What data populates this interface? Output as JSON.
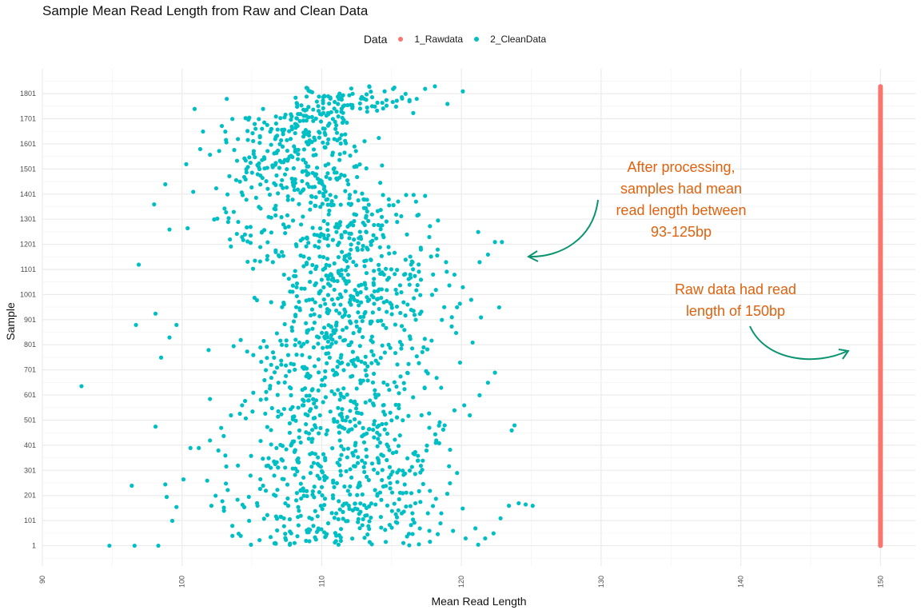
{
  "chart_data": {
    "type": "scatter",
    "title": "Sample Mean Read Length from Raw and Clean Data",
    "xlabel": "Mean Read Length",
    "ylabel": "Sample",
    "xlim": [
      90,
      152.5
    ],
    "ylim": [
      -80,
      1900
    ],
    "x_ticks": [
      "90",
      "100",
      "110",
      "120",
      "130",
      "140",
      "150"
    ],
    "y_ticks": [
      "1",
      "101",
      "201",
      "301",
      "401",
      "501",
      "601",
      "701",
      "801",
      "901",
      "1001",
      "1101",
      "1201",
      "1301",
      "1401",
      "1501",
      "1601",
      "1701",
      "1801"
    ],
    "legend": {
      "title": "Data",
      "placement": "top",
      "entries": [
        {
          "label": "1_Rawdata",
          "color": "#f8766d"
        },
        {
          "label": "2_CleanData",
          "color": "#00bfc4"
        }
      ]
    },
    "series": [
      {
        "name": "1_Rawdata",
        "color": "#f8766d",
        "description_points": "x = 150 for every sample 1-1830",
        "x_constant": 150,
        "y_range": [
          1,
          1830
        ]
      },
      {
        "name": "2_CleanData",
        "color": "#00bfc4",
        "points": [
          [
            92.8,
            636
          ],
          [
            94.8,
            1
          ],
          [
            96.6,
            1
          ],
          [
            98.3,
            1
          ],
          [
            96.4,
            240
          ],
          [
            96.7,
            880
          ],
          [
            96.9,
            1120
          ],
          [
            98.1,
            925
          ],
          [
            98.1,
            475
          ],
          [
            98.5,
            750
          ],
          [
            98.8,
            245
          ],
          [
            98.9,
            195
          ],
          [
            99.1,
            830
          ],
          [
            99.6,
            880
          ],
          [
            98.0,
            1360
          ],
          [
            98.8,
            1440
          ],
          [
            99.1,
            1260
          ],
          [
            99.3,
            100
          ],
          [
            99.6,
            155
          ],
          [
            100.1,
            265
          ],
          [
            100.3,
            1520
          ],
          [
            100.4,
            1265
          ],
          [
            100.6,
            390
          ],
          [
            100.8,
            1410
          ],
          [
            100.9,
            1740
          ],
          [
            101.3,
            1580
          ],
          [
            101.5,
            1650
          ],
          [
            101.9,
            780
          ],
          [
            102.3,
            1300
          ],
          [
            102.1,
            160
          ],
          [
            102.0,
            585
          ],
          [
            102.6,
            380
          ],
          [
            103.2,
            1780
          ],
          [
            103.6,
            1700
          ],
          [
            104.0,
            1620
          ],
          [
            104.6,
            1500
          ],
          [
            105.2,
            1680
          ],
          [
            105.8,
            1740
          ],
          [
            106.4,
            1660
          ],
          [
            107.0,
            1600
          ],
          [
            107.7,
            1550
          ],
          [
            108.3,
            1720
          ],
          [
            108.9,
            1640
          ],
          [
            109.6,
            1480
          ],
          [
            110.2,
            1790
          ],
          [
            110.8,
            1700
          ],
          [
            111.3,
            1560
          ],
          [
            111.9,
            1440
          ],
          [
            112.4,
            1410
          ],
          [
            113.0,
            1380
          ],
          [
            113.6,
            1320
          ],
          [
            114.3,
            1310
          ],
          [
            114.8,
            1380
          ],
          [
            115.4,
            1290
          ],
          [
            116.1,
            1240
          ],
          [
            113.4,
            1830
          ],
          [
            114.5,
            1810
          ],
          [
            115.2,
            1825
          ],
          [
            116.0,
            1800
          ],
          [
            116.8,
            1780
          ],
          [
            117.4,
            1820
          ],
          [
            118.1,
            1830
          ],
          [
            119.0,
            1760
          ],
          [
            120.1,
            1810
          ],
          [
            121.2,
            1250
          ],
          [
            122.4,
            1210
          ],
          [
            122.9,
            1210
          ],
          [
            122.7,
            950
          ],
          [
            121.4,
            910
          ],
          [
            120.8,
            810
          ],
          [
            119.9,
            730
          ],
          [
            118.6,
            900
          ],
          [
            117.9,
            1000
          ],
          [
            117.1,
            1060
          ],
          [
            116.4,
            940
          ],
          [
            115.7,
            1010
          ],
          [
            115.0,
            960
          ],
          [
            114.4,
            880
          ],
          [
            113.7,
            990
          ],
          [
            113.1,
            1040
          ],
          [
            112.6,
            930
          ],
          [
            112.0,
            970
          ],
          [
            111.5,
            860
          ],
          [
            110.9,
            1020
          ],
          [
            103.3,
            1290
          ],
          [
            104.5,
            1240
          ],
          [
            105.6,
            1190
          ],
          [
            106.5,
            1130
          ],
          [
            107.3,
            1080
          ],
          [
            108.2,
            1030
          ],
          [
            109.1,
            980
          ],
          [
            110.1,
            1100
          ],
          [
            111.2,
            1150
          ],
          [
            112.1,
            1200
          ],
          [
            104.2,
            820
          ],
          [
            105.1,
            760
          ],
          [
            106.0,
            700
          ],
          [
            106.9,
            650
          ],
          [
            107.8,
            600
          ],
          [
            108.7,
            560
          ],
          [
            109.5,
            510
          ],
          [
            110.4,
            460
          ],
          [
            111.3,
            420
          ],
          [
            112.2,
            370
          ],
          [
            113.1,
            330
          ],
          [
            114.0,
            290
          ],
          [
            114.9,
            250
          ],
          [
            115.8,
            210
          ],
          [
            116.7,
            170
          ],
          [
            117.6,
            130
          ],
          [
            118.5,
            90
          ],
          [
            119.4,
            60
          ],
          [
            120.3,
            30
          ],
          [
            121.2,
            5
          ],
          [
            103.1,
            360
          ],
          [
            104.0,
            320
          ],
          [
            104.9,
            280
          ],
          [
            105.8,
            240
          ],
          [
            106.7,
            200
          ],
          [
            107.6,
            160
          ],
          [
            108.5,
            120
          ],
          [
            109.4,
            80
          ],
          [
            110.3,
            40
          ],
          [
            111.2,
            5
          ],
          [
            101.2,
            390
          ],
          [
            102.0,
            420
          ],
          [
            102.8,
            470
          ],
          [
            103.5,
            520
          ],
          [
            104.3,
            560
          ],
          [
            105.1,
            610
          ],
          [
            105.9,
            660
          ],
          [
            106.8,
            710
          ],
          [
            107.6,
            760
          ],
          [
            108.4,
            810
          ],
          [
            121.0,
            70
          ],
          [
            121.7,
            30
          ],
          [
            122.3,
            50
          ],
          [
            122.8,
            110
          ],
          [
            123.4,
            160
          ],
          [
            124.1,
            170
          ],
          [
            124.6,
            165
          ],
          [
            125.1,
            160
          ],
          [
            123.6,
            460
          ],
          [
            123.8,
            480
          ],
          [
            120.2,
            560
          ],
          [
            120.6,
            520
          ],
          [
            121.3,
            600
          ],
          [
            121.9,
            650
          ],
          [
            122.4,
            690
          ],
          [
            119.5,
            540
          ],
          [
            118.8,
            480
          ],
          [
            118.2,
            420
          ],
          [
            117.5,
            380
          ],
          [
            116.9,
            340
          ],
          [
            116.3,
            300
          ],
          [
            115.6,
            440
          ],
          [
            115.0,
            500
          ],
          [
            114.4,
            560
          ],
          [
            113.8,
            620
          ],
          [
            113.2,
            680
          ],
          [
            112.6,
            740
          ],
          [
            112.0,
            800
          ],
          [
            111.4,
            760
          ],
          [
            110.8,
            700
          ],
          [
            110.2,
            640
          ],
          [
            109.6,
            580
          ],
          [
            109.0,
            520
          ],
          [
            108.4,
            460
          ],
          [
            107.8,
            400
          ],
          [
            107.2,
            340
          ],
          [
            106.6,
            280
          ],
          [
            106.0,
            220
          ],
          [
            105.4,
            160
          ],
          [
            104.8,
            100
          ],
          [
            104.2,
            40
          ],
          [
            103.6,
            80
          ],
          [
            103.0,
            140
          ],
          [
            102.4,
            200
          ],
          [
            101.8,
            260
          ],
          [
            106.2,
            1310
          ],
          [
            105.5,
            1350
          ],
          [
            104.9,
            1270
          ],
          [
            104.3,
            1230
          ],
          [
            103.7,
            1330
          ],
          [
            107.5,
            1500
          ],
          [
            108.1,
            1460
          ],
          [
            108.7,
            1420
          ],
          [
            109.3,
            1390
          ],
          [
            109.9,
            1350
          ],
          [
            110.5,
            1320
          ],
          [
            111.1,
            1280
          ],
          [
            111.7,
            1250
          ],
          [
            112.3,
            1220
          ],
          [
            112.9,
            1180
          ],
          [
            113.5,
            1140
          ],
          [
            114.1,
            1100
          ],
          [
            114.7,
            1060
          ],
          [
            115.3,
            1020
          ],
          [
            115.9,
            1080
          ],
          [
            116.5,
            1130
          ],
          [
            117.1,
            1180
          ],
          [
            117.7,
            1230
          ],
          [
            118.3,
            1180
          ],
          [
            118.9,
            1130
          ],
          [
            119.5,
            1080
          ],
          [
            120.1,
            1030
          ],
          [
            120.7,
            980
          ],
          [
            121.3,
            1130
          ],
          [
            121.9,
            1160
          ]
        ]
      }
    ],
    "annotations": [
      {
        "text": "After processing, samples had mean read length between 93-125bp"
      },
      {
        "text": "Raw data had read length of 150bp"
      }
    ]
  },
  "text": {
    "annotation_clean_lines": [
      "After processing,",
      "samples had mean",
      "read length between",
      "93-125bp"
    ],
    "annotation_raw_lines": [
      "Raw data had read",
      "length of 150bp"
    ]
  },
  "colors": {
    "raw": "#f8766d",
    "clean": "#00bfc4",
    "annotation_text": "#e0620f",
    "arrow": "#0a9470",
    "grid_major": "#ebebeb",
    "grid_minor": "#f4f4f4"
  }
}
